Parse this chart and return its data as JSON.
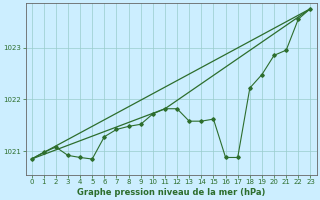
{
  "title": "Graphe pression niveau de la mer (hPa)",
  "background_color": "#cceeff",
  "grid_color": "#99cccc",
  "line_color": "#2d6e2d",
  "xlim": [
    -0.5,
    23.5
  ],
  "ylim": [
    1020.55,
    1023.85
  ],
  "yticks": [
    1021,
    1022,
    1023
  ],
  "xticks": [
    0,
    1,
    2,
    3,
    4,
    5,
    6,
    7,
    8,
    9,
    10,
    11,
    12,
    13,
    14,
    15,
    16,
    17,
    18,
    19,
    20,
    21,
    22,
    23
  ],
  "line_straight": [
    [
      0,
      1020.85
    ],
    [
      23,
      1023.75
    ]
  ],
  "line_zigzag": [
    [
      0,
      1020.85
    ],
    [
      1,
      1020.98
    ],
    [
      2,
      1021.08
    ],
    [
      3,
      1020.92
    ],
    [
      4,
      1020.88
    ],
    [
      5,
      1020.85
    ],
    [
      6,
      1021.28
    ],
    [
      7,
      1021.42
    ],
    [
      8,
      1021.48
    ],
    [
      9,
      1021.52
    ],
    [
      10,
      1021.72
    ],
    [
      11,
      1021.82
    ],
    [
      12,
      1021.82
    ],
    [
      13,
      1021.58
    ],
    [
      14,
      1021.58
    ],
    [
      15,
      1021.62
    ],
    [
      16,
      1020.88
    ],
    [
      17,
      1020.88
    ],
    [
      18,
      1022.22
    ],
    [
      19,
      1022.48
    ],
    [
      20,
      1022.85
    ],
    [
      21,
      1022.95
    ],
    [
      22,
      1023.55
    ],
    [
      23,
      1023.75
    ]
  ],
  "line_upper": [
    [
      0,
      1020.85
    ],
    [
      11,
      1021.82
    ],
    [
      23,
      1023.75
    ]
  ]
}
